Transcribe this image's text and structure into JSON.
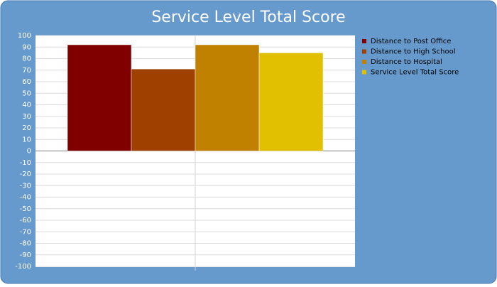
{
  "chart_data": {
    "type": "bar",
    "title": "Service Level Total Score",
    "categories": [
      null
    ],
    "series": [
      {
        "name": "Distance to Post Office",
        "color": "#800000",
        "values": [
          92
        ]
      },
      {
        "name": "Distance to High School",
        "color": "#a04000",
        "values": [
          71
        ]
      },
      {
        "name": "Distance to Hospital",
        "color": "#c08000",
        "values": [
          92
        ]
      },
      {
        "name": "Service Level Total Score",
        "color": "#e0c000",
        "values": [
          85
        ]
      }
    ],
    "ylim": [
      -100,
      100
    ],
    "yticks": [
      -100,
      -90,
      -80,
      -70,
      -60,
      -50,
      -40,
      -30,
      -20,
      -10,
      0,
      10,
      20,
      30,
      40,
      50,
      60,
      70,
      80,
      90,
      100
    ],
    "grid": true,
    "legend": "right"
  }
}
